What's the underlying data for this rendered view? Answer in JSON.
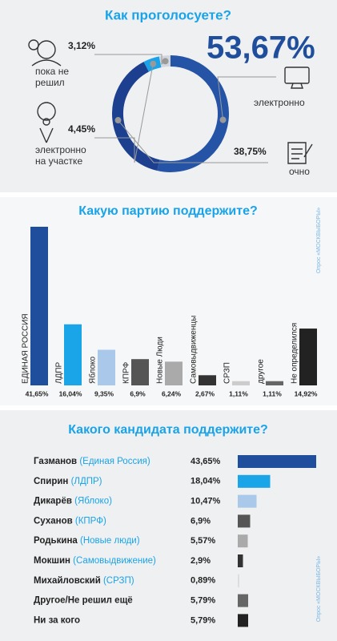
{
  "chart_data": [
    {
      "type": "donut",
      "title": "Как проголосуете?",
      "categories": [
        "электронно",
        "очно",
        "электронно на участке",
        "пока не решил"
      ],
      "values": [
        53.67,
        38.75,
        4.45,
        3.12
      ],
      "value_labels": [
        "53,67%",
        "38,75%",
        "4,45%",
        "3,12%"
      ],
      "colors": [
        "#2553a6",
        "#1d3f8f",
        "#1aa3e8",
        "#d3d7dd"
      ]
    },
    {
      "type": "bar",
      "title": "Какую партию поддержите?",
      "source": "Опрос «МОСКВЫБОРЫ»",
      "categories": [
        "ЕДИНАЯ РОССИЯ",
        "ЛДПР",
        "Яблоко",
        "КПРФ",
        "Новые Люди",
        "Самовыдвиженцы",
        "СРЗП",
        "другое",
        "Не определился"
      ],
      "values": [
        41.65,
        16.04,
        9.35,
        6.9,
        6.24,
        2.67,
        1.11,
        1.11,
        14.92
      ],
      "value_labels": [
        "41,65%",
        "16,04%",
        "9,35%",
        "6,9%",
        "6,24%",
        "2,67%",
        "1,11%",
        "1,11%",
        "14,92%"
      ],
      "colors": [
        "#1f4e9c",
        "#19a5e8",
        "#a9c8ea",
        "#555555",
        "#aaaaaa",
        "#333333",
        "#cccccc",
        "#666666",
        "#222222"
      ]
    },
    {
      "type": "hbar",
      "title": "Какого кандидата поддержите?",
      "source": "Опрос «МОСКВЫБОРЫ»",
      "categories": [
        "Газманов",
        "Спирин",
        "Дикарёв",
        "Суханов",
        "Родькина",
        "Мокшин",
        "Михайловский",
        "Другое/Не решил ещё",
        "Ни за кого"
      ],
      "parties": [
        "(Единая Россия)",
        "(ЛДПР)",
        "(Яблоко)",
        "(КПРФ)",
        "(Новые люди)",
        "(Самовыдвижение)",
        "(СРЗП)",
        null,
        null
      ],
      "values": [
        43.65,
        18.04,
        10.47,
        6.9,
        5.57,
        2.9,
        0.89,
        5.79,
        5.79
      ],
      "value_labels": [
        "43,65%",
        "18,04%",
        "10,47%",
        "6,9%",
        "5,57%",
        "2,9%",
        "0,89%",
        "5,79%",
        "5,79%"
      ],
      "colors": [
        "#1f4e9c",
        "#19a5e8",
        "#a9c8ea",
        "#555555",
        "#aaaaaa",
        "#333333",
        "#dddddd",
        "#666666",
        "#222222"
      ]
    }
  ]
}
